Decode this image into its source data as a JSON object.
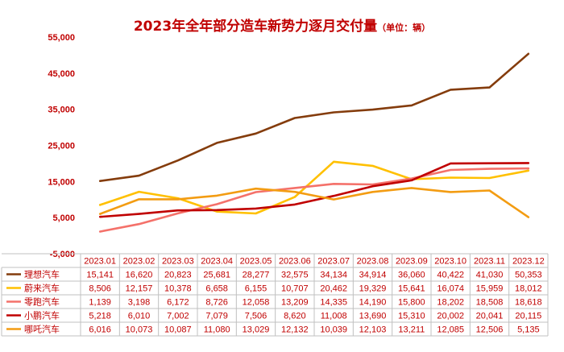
{
  "title": "2023年全年部分造车新势力逐月交付量",
  "unit_note": "（单位：辆）",
  "chart_data": {
    "type": "line",
    "title": "2023年全年部分造车新势力逐月交付量",
    "subtitle": "（单位：辆）",
    "categories": [
      "2023.01",
      "2023.02",
      "2023.03",
      "2023.04",
      "2023.05",
      "2023.06",
      "2023.07",
      "2023.08",
      "2023.09",
      "2023.10",
      "2023.11",
      "2023.12"
    ],
    "ylim": [
      -5000,
      55000
    ],
    "yticks": [
      -5000,
      5000,
      15000,
      25000,
      35000,
      45000,
      55000
    ],
    "ytick_labels": [
      "-5,000",
      "5,000",
      "15,000",
      "25,000",
      "35,000",
      "45,000",
      "55,000"
    ],
    "grid": false,
    "legend": "table-bottom",
    "series": [
      {
        "name": "理想汽车",
        "color": "#843c0c",
        "values": [
          15141,
          16620,
          20823,
          25681,
          28277,
          32575,
          34134,
          34914,
          36060,
          40422,
          41030,
          50353
        ],
        "labels": [
          "15,141",
          "16,620",
          "20,823",
          "25,681",
          "28,277",
          "32,575",
          "34,134",
          "34,914",
          "36,060",
          "40,422",
          "41,030",
          "50,353"
        ]
      },
      {
        "name": "蔚来汽车",
        "color": "#ffc000",
        "values": [
          8506,
          12157,
          10378,
          6658,
          6155,
          10707,
          20462,
          19329,
          15641,
          16074,
          15959,
          18012
        ],
        "labels": [
          "8,506",
          "12,157",
          "10,378",
          "6,658",
          "6,155",
          "10,707",
          "20,462",
          "19,329",
          "15,641",
          "16,074",
          "15,959",
          "18,012"
        ]
      },
      {
        "name": "零跑汽车",
        "color": "#f4716a",
        "values": [
          1139,
          3198,
          6172,
          8726,
          12058,
          13209,
          14335,
          14190,
          15800,
          18202,
          18508,
          18618
        ],
        "labels": [
          "1,139",
          "3,198",
          "6,172",
          "8,726",
          "12,058",
          "13,209",
          "14,335",
          "14,190",
          "15,800",
          "18,202",
          "18,508",
          "18,618"
        ]
      },
      {
        "name": "小鹏汽车",
        "color": "#c00000",
        "values": [
          5218,
          6010,
          7002,
          7079,
          7506,
          8620,
          11008,
          13690,
          15310,
          20002,
          20041,
          20115
        ],
        "labels": [
          "5,218",
          "6,010",
          "7,002",
          "7,079",
          "7,506",
          "8,620",
          "11,008",
          "13,690",
          "15,310",
          "20,002",
          "20,041",
          "20,115"
        ]
      },
      {
        "name": "哪吒汽车",
        "color": "#f39c12",
        "values": [
          6016,
          10073,
          10087,
          11080,
          13029,
          12132,
          10039,
          12103,
          13211,
          12085,
          12506,
          5135
        ],
        "labels": [
          "6,016",
          "10,073",
          "10,087",
          "11,080",
          "13,029",
          "12,132",
          "10,039",
          "12,103",
          "13,211",
          "12,085",
          "12,506",
          "5,135"
        ]
      }
    ]
  }
}
